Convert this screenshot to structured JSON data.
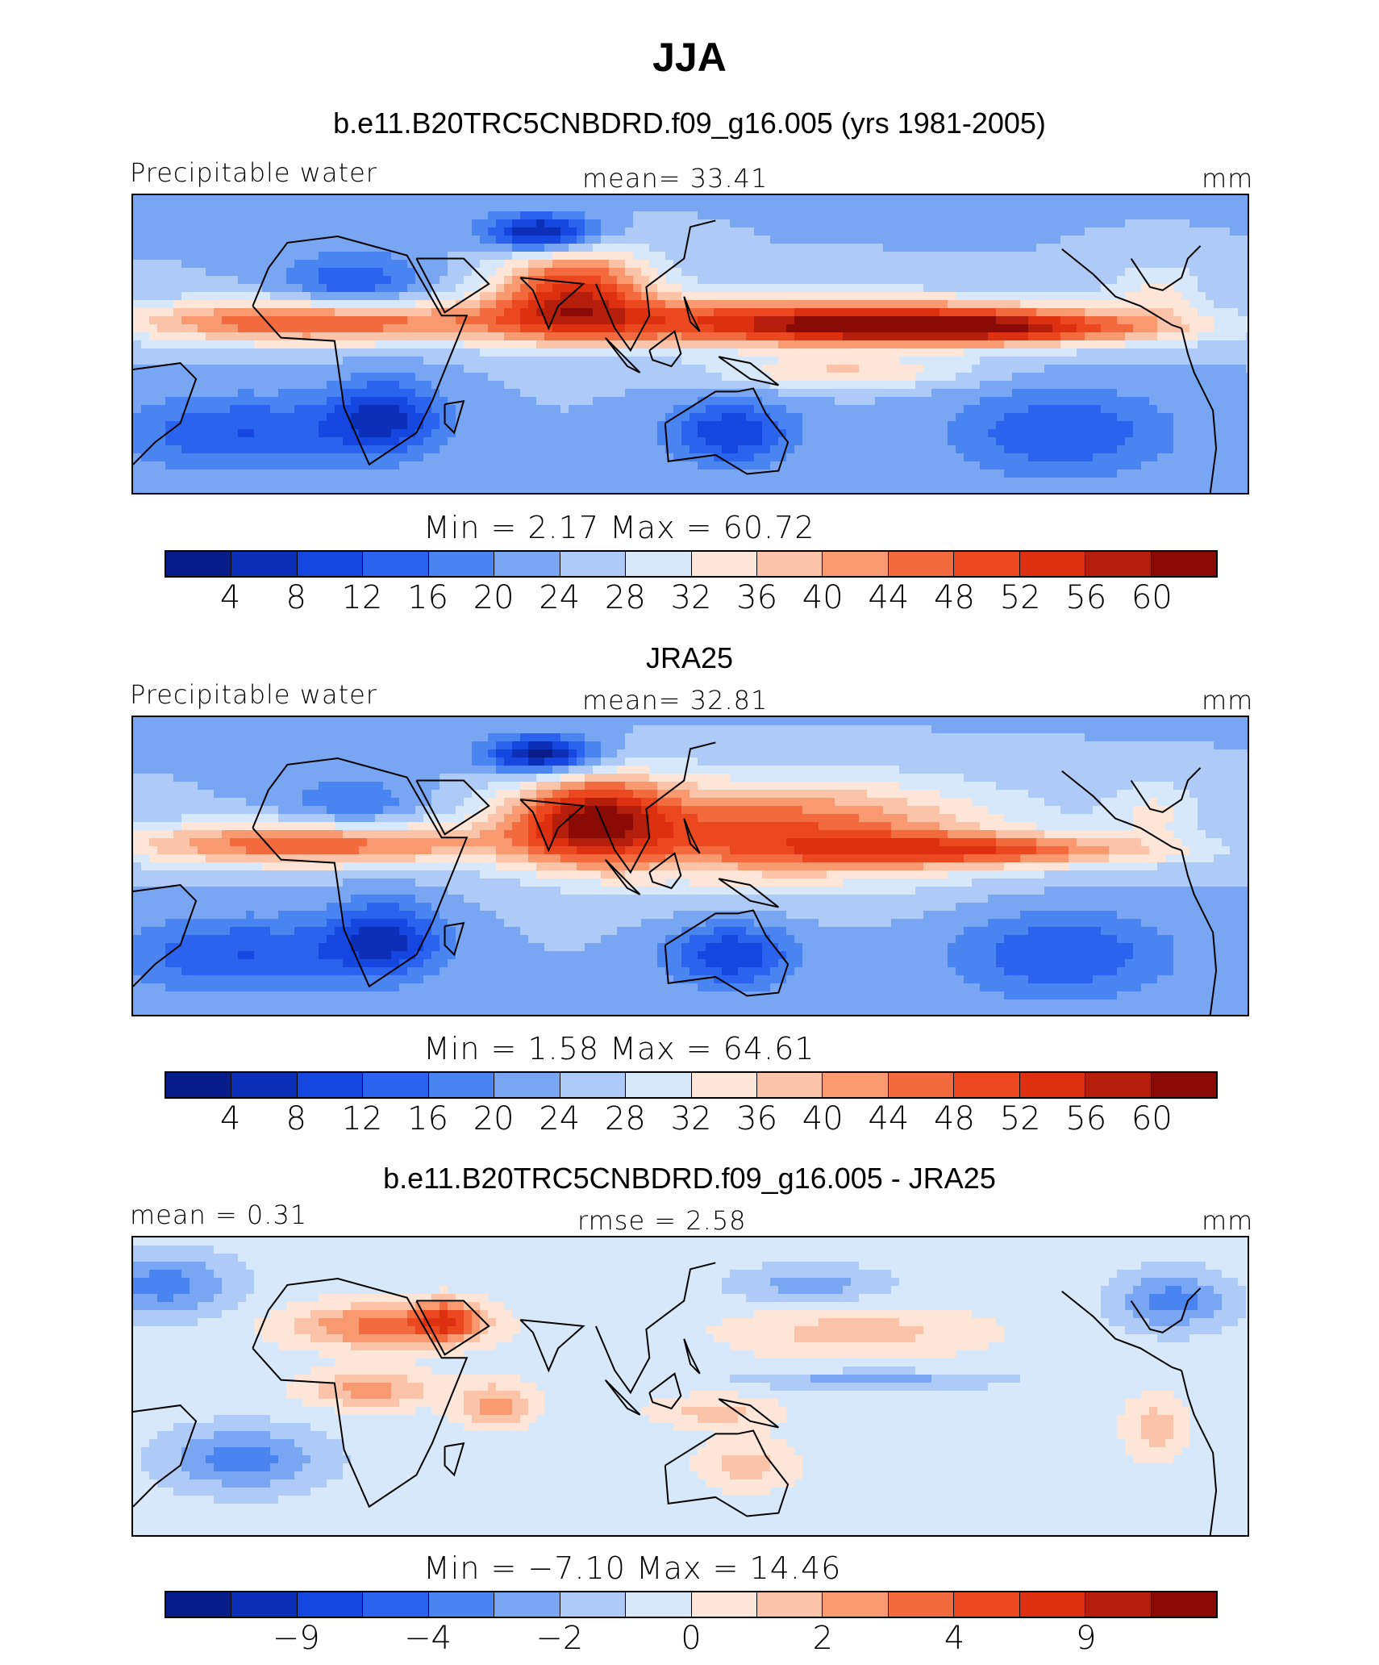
{
  "title": "JJA",
  "colors": [
    "#081d8a",
    "#0b2fb6",
    "#1546e0",
    "#2b63ee",
    "#4a84f0",
    "#78a6f3",
    "#aecaf7",
    "#d8e8fb",
    "#fde6d8",
    "#fbc4a8",
    "#f8996f",
    "#f26a3e",
    "#ec4820",
    "#dc3010",
    "#b51e0a",
    "#8a0b05"
  ],
  "panels": [
    {
      "title": "b.e11.B20TRC5CNBDRD.f09_g16.005 (yrs 1981-2005)",
      "left_label": "Precipitable water",
      "center_label": "mean=   33.41",
      "units": "mm",
      "stats_text": "Min  =     2.17  Max  =    60.72",
      "tick_labels": [
        "4",
        "8",
        "12",
        "16",
        "20",
        "24",
        "28",
        "32",
        "36",
        "40",
        "44",
        "48",
        "52",
        "56",
        "60"
      ],
      "tick_index": [
        1,
        2,
        3,
        4,
        5,
        6,
        7,
        8,
        9,
        10,
        11,
        12,
        13,
        14,
        15
      ],
      "field": {
        "base": 6,
        "blobs": [
          {
            "lon": 0,
            "lat": 75,
            "w": 500,
            "h": 15,
            "v": -3
          },
          {
            "lon": 0,
            "lat": -85,
            "w": 500,
            "h": 18,
            "v": -4
          },
          {
            "lon": -20,
            "lat": -25,
            "w": 40,
            "h": 12,
            "v": -3
          },
          {
            "lon": 25,
            "lat": -20,
            "w": 18,
            "h": 12,
            "v": -4
          },
          {
            "lon": 75,
            "lat": 38,
            "w": 18,
            "h": 6,
            "v": -6
          },
          {
            "lon": 15,
            "lat": 22,
            "w": 22,
            "h": 10,
            "v": -3
          },
          {
            "lon": 0,
            "lat": 10,
            "w": 60,
            "h": 7,
            "v": 6
          },
          {
            "lon": 85,
            "lat": 20,
            "w": 25,
            "h": 14,
            "v": 7
          },
          {
            "lon": 160,
            "lat": 10,
            "w": 90,
            "h": 8,
            "v": 7
          },
          {
            "lon": 210,
            "lat": 8,
            "w": 60,
            "h": 5,
            "v": 6
          },
          {
            "lon": 170,
            "lat": -6,
            "w": 40,
            "h": 5,
            "v": 3
          },
          {
            "lon": 135,
            "lat": -25,
            "w": 20,
            "h": 10,
            "v": -4
          },
          {
            "lon": 240,
            "lat": -25,
            "w": 35,
            "h": 14,
            "v": -3
          },
          {
            "lon": 270,
            "lat": 20,
            "w": 15,
            "h": 10,
            "v": 2
          }
        ],
        "clamp": [
          0,
          15
        ]
      },
      "map_top": 240,
      "stats_top": 632,
      "cbar_top": 682,
      "ticks_top": 718
    },
    {
      "title": "JRA25",
      "left_label": "Precipitable water",
      "center_label": "mean=   32.81",
      "units": "mm",
      "stats_text": "Min  =     1.58  Max  =    64.61",
      "tick_labels": [
        "4",
        "8",
        "12",
        "16",
        "20",
        "24",
        "28",
        "32",
        "36",
        "40",
        "44",
        "48",
        "52",
        "56",
        "60"
      ],
      "tick_index": [
        1,
        2,
        3,
        4,
        5,
        6,
        7,
        8,
        9,
        10,
        11,
        12,
        13,
        14,
        15
      ],
      "field": {
        "base": 6,
        "blobs": [
          {
            "lon": 0,
            "lat": 75,
            "w": 500,
            "h": 15,
            "v": -3
          },
          {
            "lon": 0,
            "lat": -85,
            "w": 500,
            "h": 18,
            "v": -4
          },
          {
            "lon": -20,
            "lat": -25,
            "w": 40,
            "h": 12,
            "v": -3
          },
          {
            "lon": 25,
            "lat": -20,
            "w": 18,
            "h": 12,
            "v": -4
          },
          {
            "lon": 75,
            "lat": 38,
            "w": 18,
            "h": 6,
            "v": -6
          },
          {
            "lon": 15,
            "lat": 22,
            "w": 22,
            "h": 10,
            "v": -2
          },
          {
            "lon": 0,
            "lat": 10,
            "w": 60,
            "h": 7,
            "v": 6
          },
          {
            "lon": 90,
            "lat": 18,
            "w": 25,
            "h": 14,
            "v": 7
          },
          {
            "lon": 150,
            "lat": 14,
            "w": 70,
            "h": 16,
            "v": 6
          },
          {
            "lon": 215,
            "lat": 8,
            "w": 60,
            "h": 5,
            "v": 5
          },
          {
            "lon": 135,
            "lat": -25,
            "w": 20,
            "h": 10,
            "v": -4
          },
          {
            "lon": 240,
            "lat": -25,
            "w": 35,
            "h": 14,
            "v": -3
          },
          {
            "lon": 270,
            "lat": 20,
            "w": 15,
            "h": 10,
            "v": 2
          }
        ],
        "clamp": [
          0,
          15
        ]
      },
      "map_top": 887,
      "stats_top": 1278,
      "cbar_top": 1328,
      "ticks_top": 1364
    },
    {
      "title": "b.e11.B20TRC5CNBDRD.f09_g16.005 - JRA25",
      "left_label": "mean =    0.31",
      "center_label": "rmse =     2.58",
      "units": "mm",
      "stats_text": "Min  =   −7.10  Max  =    14.46",
      "tick_labels": [
        "−9",
        "−4",
        "−2",
        "0",
        "2",
        "4",
        "9"
      ],
      "tick_index": [
        2,
        4,
        6,
        8,
        10,
        12,
        14
      ],
      "field": {
        "base": 7.5,
        "blobs": [
          {
            "lon": 25,
            "lat": 22,
            "w": 30,
            "h": 7,
            "v": 4
          },
          {
            "lon": 45,
            "lat": 24,
            "w": 10,
            "h": 6,
            "v": 4
          },
          {
            "lon": 20,
            "lat": 2,
            "w": 20,
            "h": 6,
            "v": 3
          },
          {
            "lon": 60,
            "lat": -3,
            "w": 12,
            "h": 7,
            "v": 3
          },
          {
            "lon": 175,
            "lat": 20,
            "w": 40,
            "h": 8,
            "v": 2
          },
          {
            "lon": 130,
            "lat": -5,
            "w": 20,
            "h": 5,
            "v": 2
          },
          {
            "lon": 140,
            "lat": -22,
            "w": 15,
            "h": 8,
            "v": 2
          },
          {
            "lon": -45,
            "lat": 35,
            "w": 22,
            "h": 10,
            "v": -3
          },
          {
            "lon": -20,
            "lat": -20,
            "w": 25,
            "h": 10,
            "v": -3
          },
          {
            "lon": 160,
            "lat": 35,
            "w": 25,
            "h": 6,
            "v": -2
          },
          {
            "lon": 180,
            "lat": 5,
            "w": 40,
            "h": 3,
            "v": -2
          },
          {
            "lon": 275,
            "lat": 30,
            "w": 18,
            "h": 9,
            "v": -3
          },
          {
            "lon": 270,
            "lat": -10,
            "w": 10,
            "h": 10,
            "v": 2
          }
        ],
        "clamp": [
          0,
          15
        ]
      },
      "map_top": 1532,
      "stats_top": 1922,
      "cbar_top": 1972,
      "ticks_top": 2008
    }
  ]
}
